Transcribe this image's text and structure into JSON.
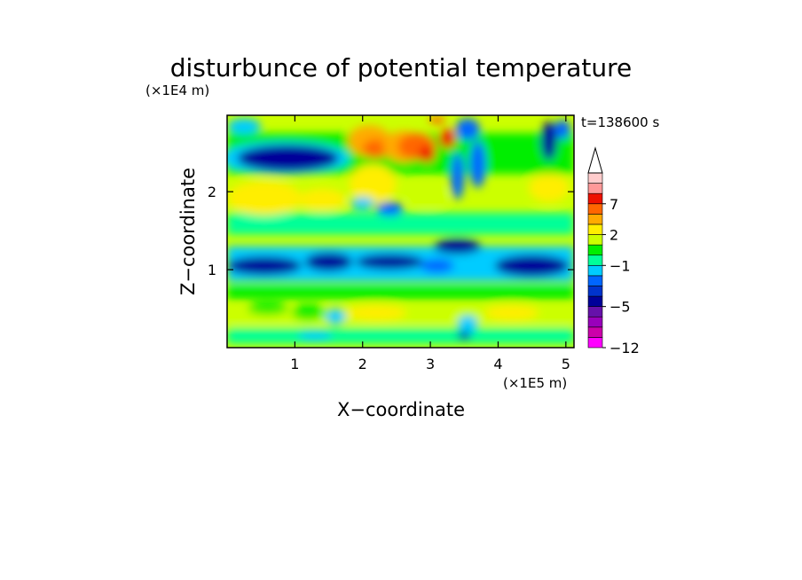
{
  "chart_data": {
    "type": "heatmap",
    "title": "disturbunce of potential temperature",
    "time_label": "t=138600 s",
    "xlabel": "X−coordinate",
    "ylabel": "Z−coordinate",
    "x_unit": "(×1E5 m)",
    "y_unit": "(×1E4 m)",
    "xlim": [
      0,
      5.12
    ],
    "ylim": [
      0,
      2.98
    ],
    "x_ticks": [
      1,
      2,
      3,
      4,
      5
    ],
    "y_ticks": [
      1,
      2
    ],
    "colorbar": {
      "bounds": [
        -12,
        -10,
        -8,
        -6,
        -5,
        -4,
        -3,
        -2,
        -1,
        0,
        1,
        2,
        3,
        5,
        7,
        9,
        11
      ],
      "labels": [
        "−12",
        "−5",
        "−1",
        "2",
        "7"
      ],
      "label_values": [
        -12,
        -5,
        -1,
        2,
        7
      ],
      "colors": [
        "#ff00ff",
        "#cc00aa",
        "#9900bb",
        "#6611aa",
        "#000099",
        "#0033cc",
        "#0066ff",
        "#00ccff",
        "#00ff99",
        "#00ee00",
        "#ccff00",
        "#ffee00",
        "#ffaa00",
        "#ff6600",
        "#ee1100",
        "#ff9999",
        "#ffcccc"
      ],
      "extend": "max"
    }
  }
}
